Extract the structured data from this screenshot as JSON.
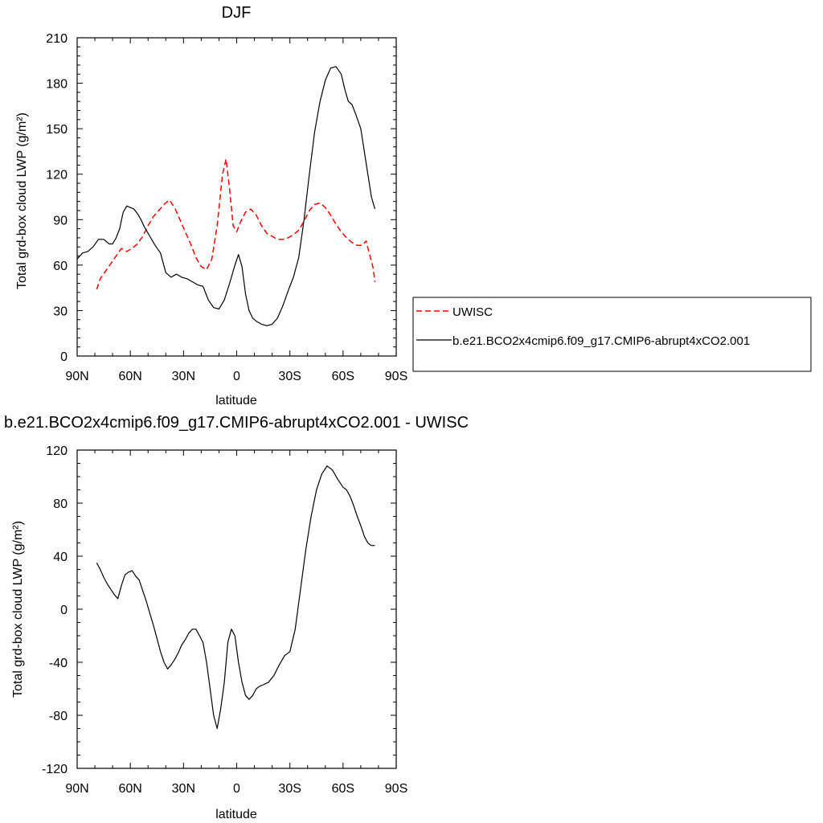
{
  "chart_data": [
    {
      "type": "line",
      "title": "DJF",
      "xlabel": "latitude",
      "ylabel": "Total grd-box cloud LWP (g/m²)",
      "ylim": [
        0,
        210
      ],
      "yticks": [
        0,
        30,
        60,
        90,
        120,
        150,
        180,
        210
      ],
      "xlim": [
        90,
        -90
      ],
      "xticks": [
        90,
        60,
        30,
        0,
        -30,
        -60,
        -90
      ],
      "xtick_labels": [
        "90N",
        "60N",
        "30N",
        "0",
        "30S",
        "60S",
        "90S"
      ],
      "legend_position": "right",
      "series": [
        {
          "name": "UWISC",
          "color": "#ff0000",
          "dash": "dashed",
          "x": [
            79,
            77,
            74,
            71,
            68,
            65,
            62,
            59,
            56,
            53,
            50,
            47,
            44,
            41,
            38,
            35,
            32,
            29,
            26,
            23,
            20,
            17,
            14,
            11,
            8,
            6,
            4,
            2,
            0,
            -2,
            -5,
            -8,
            -11,
            -14,
            -17,
            -20,
            -23,
            -26,
            -29,
            -32,
            -35,
            -38,
            -41,
            -44,
            -47,
            -50,
            -53,
            -56,
            -59,
            -62,
            -65,
            -68,
            -71,
            -73,
            -75,
            -77,
            -78
          ],
          "y": [
            44,
            51,
            56,
            61,
            66,
            71,
            69,
            71,
            74,
            79,
            86,
            92,
            96,
            100,
            103,
            98,
            90,
            82,
            74,
            65,
            59,
            57,
            64,
            86,
            120,
            130,
            110,
            86,
            82,
            88,
            95,
            97,
            93,
            86,
            81,
            79,
            77,
            77,
            78,
            80,
            83,
            89,
            96,
            100,
            101,
            98,
            93,
            87,
            82,
            78,
            75,
            73,
            73,
            76,
            67,
            58,
            49
          ]
        },
        {
          "name": "b.e21.BCO2x4cmip6.f09_g17.CMIP6-abrupt4xCO2.001",
          "color": "#000000",
          "dash": "solid",
          "x": [
            90,
            87,
            84,
            81,
            78,
            75,
            72,
            70,
            68,
            66,
            64,
            62,
            60,
            58,
            56,
            54,
            52,
            49,
            46,
            43,
            40,
            37,
            34,
            31,
            28,
            25,
            22,
            19,
            16,
            13,
            10,
            7,
            4,
            1,
            -1,
            -3,
            -5,
            -7,
            -9,
            -11,
            -14,
            -17,
            -20,
            -23,
            -26,
            -29,
            -32,
            -35,
            -38,
            -41,
            -44,
            -47,
            -50,
            -53,
            -56,
            -59,
            -61,
            -63,
            -65,
            -67,
            -70,
            -72,
            -74,
            -76,
            -78
          ],
          "y": [
            64,
            68,
            69,
            72,
            77,
            77,
            74,
            74,
            78,
            84,
            95,
            99,
            98,
            97,
            94,
            90,
            85,
            79,
            73,
            68,
            55,
            52,
            54,
            52,
            51,
            49,
            47,
            46,
            37,
            32,
            31,
            37,
            48,
            60,
            67,
            59,
            41,
            30,
            25,
            23,
            21,
            20,
            21,
            25,
            33,
            43,
            52,
            65,
            90,
            120,
            148,
            168,
            182,
            190,
            191,
            186,
            176,
            168,
            166,
            160,
            150,
            135,
            120,
            105,
            97
          ]
        }
      ]
    },
    {
      "type": "line",
      "title": "b.e21.BCO2x4cmip6.f09_g17.CMIP6-abrupt4xCO2.001 - UWISC",
      "xlabel": "latitude",
      "ylabel": "Total grd-box cloud LWP (g/m²)",
      "ylim": [
        -120,
        120
      ],
      "yticks": [
        -120,
        -80,
        -40,
        0,
        40,
        80,
        120
      ],
      "xlim": [
        90,
        -90
      ],
      "xticks": [
        90,
        60,
        30,
        0,
        -30,
        -60,
        -90
      ],
      "xtick_labels": [
        "90N",
        "60N",
        "30N",
        "0",
        "30S",
        "60S",
        "90S"
      ],
      "series": [
        {
          "name": "",
          "color": "#000000",
          "dash": "solid",
          "x": [
            79,
            77,
            75,
            73,
            71,
            69,
            67,
            65,
            63,
            61,
            59,
            57,
            55,
            53,
            51,
            49,
            47,
            45,
            43,
            41,
            39,
            37,
            35,
            33,
            31,
            29,
            27,
            25,
            23,
            21,
            19,
            17,
            15,
            13,
            11,
            9,
            7,
            5,
            3,
            1,
            -1,
            -3,
            -5,
            -7,
            -9,
            -11,
            -13,
            -15,
            -18,
            -21,
            -24,
            -27,
            -30,
            -33,
            -36,
            -39,
            -42,
            -45,
            -48,
            -51,
            -54,
            -57,
            -60,
            -62,
            -64,
            -66,
            -68,
            -70,
            -72,
            -74,
            -76,
            -78
          ],
          "y": [
            35,
            30,
            24,
            19,
            15,
            11,
            8,
            18,
            26,
            28,
            29,
            25,
            22,
            14,
            6,
            -3,
            -12,
            -22,
            -32,
            -40,
            -45,
            -42,
            -38,
            -33,
            -27,
            -23,
            -18,
            -15,
            -15,
            -20,
            -25,
            -40,
            -60,
            -80,
            -90,
            -75,
            -55,
            -25,
            -15,
            -20,
            -40,
            -55,
            -65,
            -68,
            -65,
            -60,
            -58,
            -57,
            -55,
            -50,
            -42,
            -35,
            -32,
            -15,
            15,
            45,
            70,
            90,
            102,
            108,
            105,
            98,
            92,
            90,
            85,
            78,
            70,
            63,
            55,
            50,
            48,
            48
          ]
        }
      ]
    }
  ]
}
